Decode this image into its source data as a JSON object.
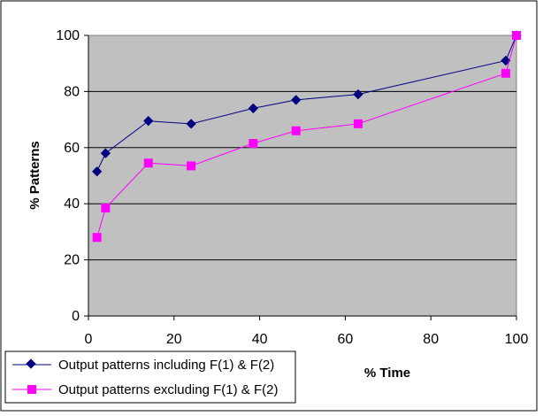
{
  "chart_data": {
    "type": "line",
    "xlabel": "% Time",
    "ylabel": "% Patterns",
    "xlim": [
      0,
      100
    ],
    "ylim": [
      0,
      100
    ],
    "x_ticks": [
      0,
      20,
      40,
      60,
      80,
      100
    ],
    "y_ticks": [
      0,
      20,
      40,
      60,
      80,
      100
    ],
    "grid": "horizontal",
    "legend_position": "bottom-left",
    "plot_background": "#c0c0c0",
    "series": [
      {
        "name": "Output patterns including F(1) & F(2)",
        "color": "#000080",
        "marker": "diamond",
        "x": [
          2,
          4,
          14,
          24,
          38.5,
          48.5,
          63,
          97.5,
          100
        ],
        "y": [
          51.5,
          58,
          69.5,
          68.5,
          74,
          77,
          79,
          91,
          100
        ]
      },
      {
        "name": "Output patterns excluding F(1) & F(2)",
        "color": "#ff00ff",
        "marker": "square",
        "x": [
          2,
          4,
          14,
          24,
          38.5,
          48.5,
          63,
          97.5,
          100
        ],
        "y": [
          28,
          38.5,
          54.5,
          53.5,
          61.5,
          66,
          68.5,
          86.5,
          100
        ]
      }
    ]
  }
}
